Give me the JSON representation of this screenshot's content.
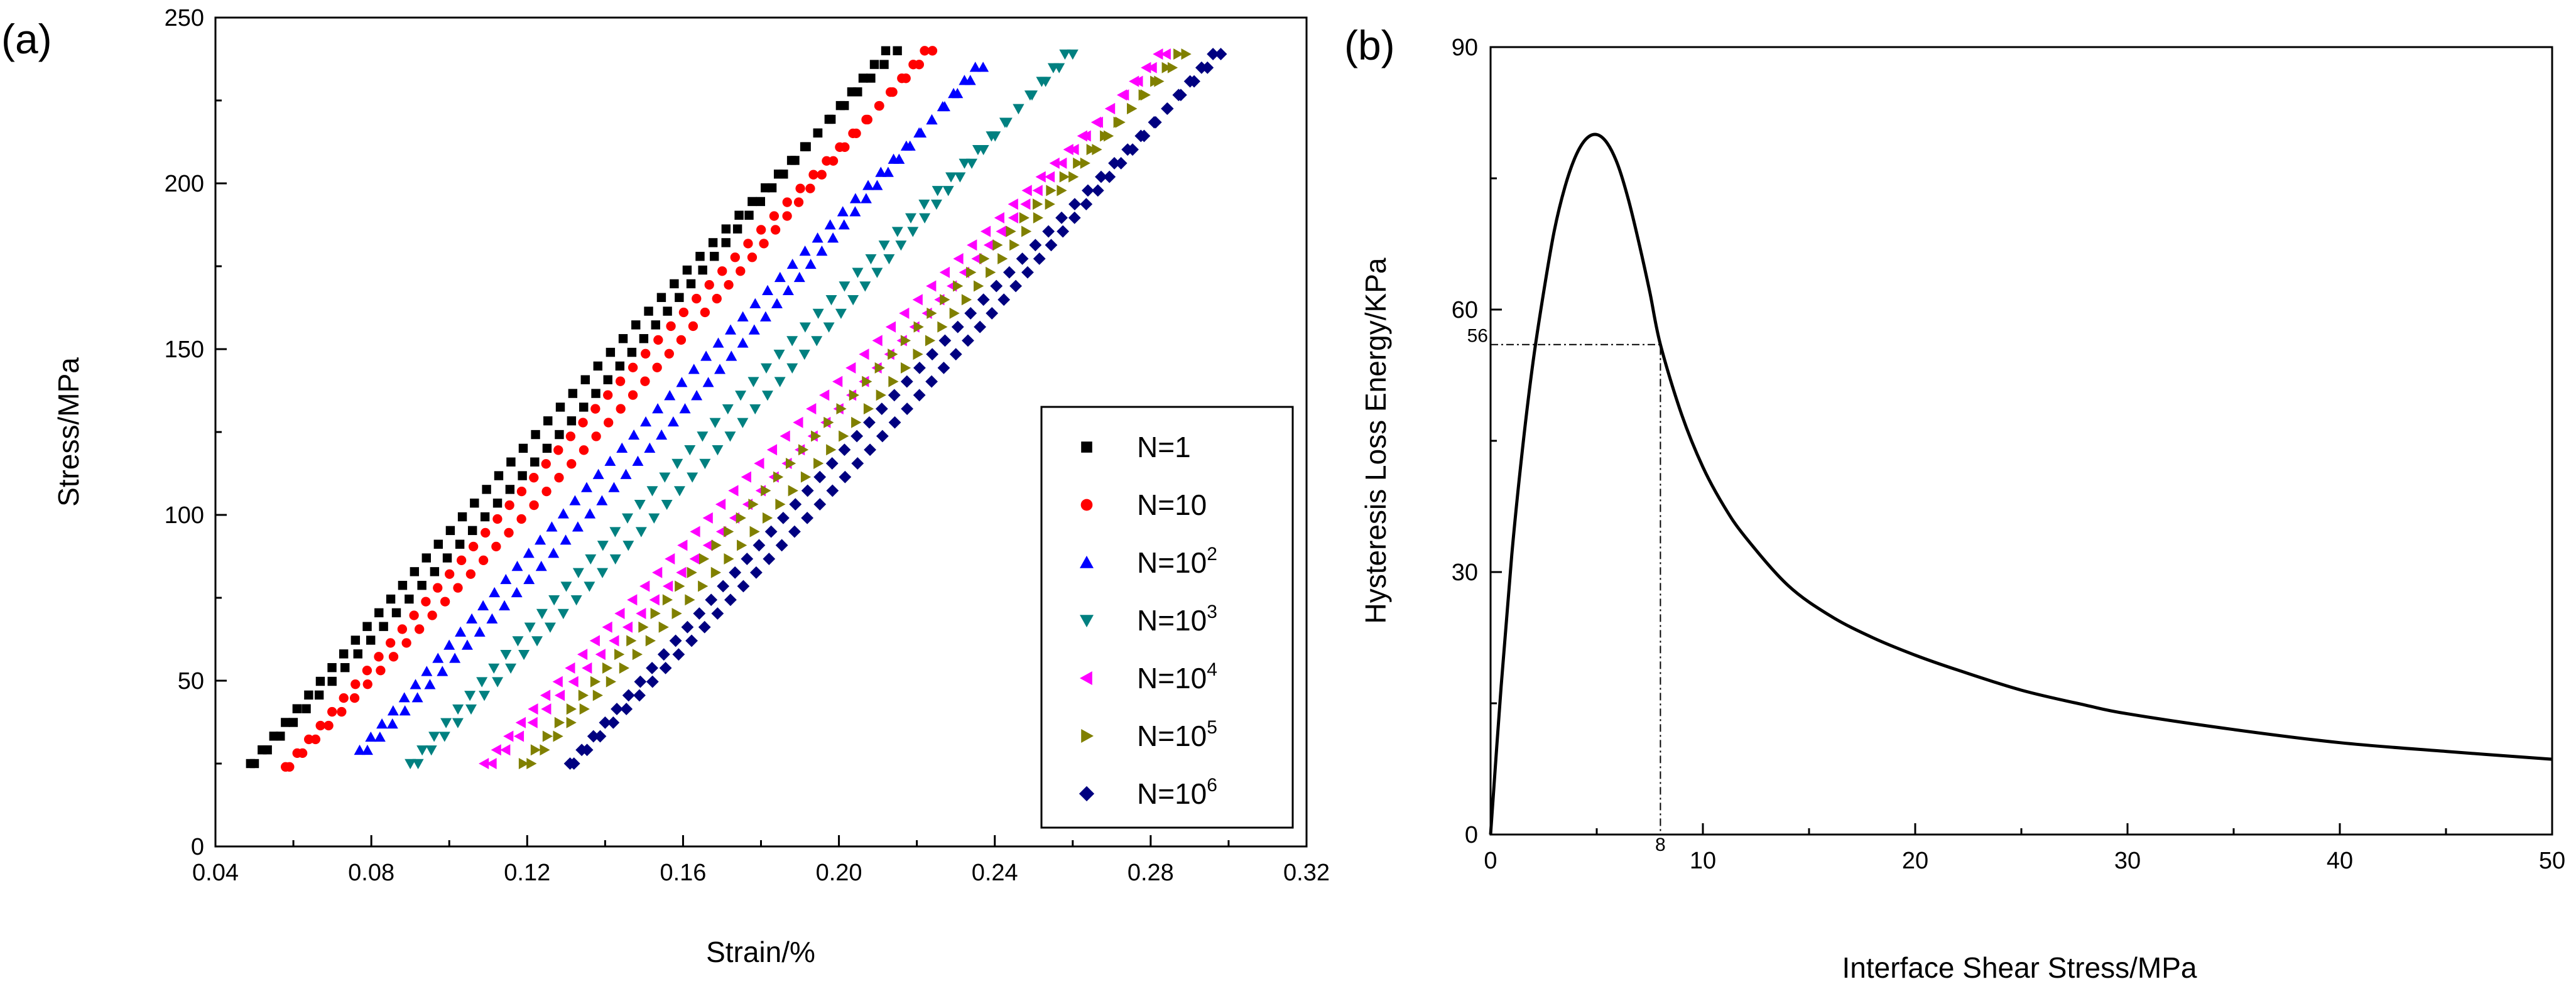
{
  "chart_data": [
    {
      "type": "scatter",
      "panel_label": "(a)",
      "title": "",
      "xlabel": "Strain/%",
      "ylabel": "Stress/MPa",
      "xlim": [
        0.04,
        0.32
      ],
      "ylim": [
        0,
        250
      ],
      "xticks": [
        0.04,
        0.08,
        0.12,
        0.16,
        0.2,
        0.24,
        0.28,
        0.32
      ],
      "xtick_labels": [
        "0.04",
        "0.08",
        "0.12",
        "0.16",
        "0.20",
        "0.24",
        "0.28",
        "0.32"
      ],
      "yticks": [
        0,
        50,
        100,
        150,
        200,
        250
      ],
      "ytick_labels": [
        "0",
        "50",
        "100",
        "150",
        "200",
        "250"
      ],
      "legend_position": "lower-right",
      "series": [
        {
          "name": "N=1",
          "base": "N=1",
          "sup": "",
          "color": "#000000",
          "marker": "square",
          "load": [
            [
              0.049,
              25
            ],
            [
              0.215,
              240
            ]
          ],
          "unload": [
            [
              0.212,
              240
            ],
            [
              0.05,
              25
            ]
          ]
        },
        {
          "name": "N=10",
          "base": "N=10",
          "sup": "",
          "color": "#ff0000",
          "marker": "circle",
          "load": [
            [
              0.058,
              24
            ],
            [
              0.224,
              240
            ]
          ],
          "unload": [
            [
              0.222,
              240
            ],
            [
              0.059,
              24
            ]
          ]
        },
        {
          "name": "N=10^2",
          "base": "N=10",
          "sup": "2",
          "color": "#0000ff",
          "marker": "triangle-up",
          "load": [
            [
              0.077,
              29
            ],
            [
              0.237,
              235
            ]
          ],
          "unload": [
            [
              0.235,
              235
            ],
            [
              0.079,
              29
            ]
          ]
        },
        {
          "name": "N=10^3",
          "base": "N=10",
          "sup": "3",
          "color": "#008080",
          "marker": "triangle-down",
          "load": [
            [
              0.09,
              25
            ],
            [
              0.26,
              239
            ]
          ],
          "unload": [
            [
              0.258,
              239
            ],
            [
              0.092,
              25
            ]
          ]
        },
        {
          "name": "N=10^4",
          "base": "N=10",
          "sup": "4",
          "color": "#ff00ff",
          "marker": "triangle-left",
          "load": [
            [
              0.109,
              25
            ],
            [
              0.284,
              239
            ]
          ],
          "unload": [
            [
              0.282,
              239
            ],
            [
              0.111,
              25
            ]
          ]
        },
        {
          "name": "N=10^5",
          "base": "N=10",
          "sup": "5",
          "color": "#808000",
          "marker": "triangle-right",
          "load": [
            [
              0.119,
              25
            ],
            [
              0.289,
              239
            ]
          ],
          "unload": [
            [
              0.287,
              239
            ],
            [
              0.121,
              25
            ]
          ]
        },
        {
          "name": "N=10^6",
          "base": "N=10",
          "sup": "6",
          "color": "#000080",
          "marker": "diamond",
          "load": [
            [
              0.131,
              25
            ],
            [
              0.298,
              239
            ]
          ],
          "unload": [
            [
              0.296,
              239
            ],
            [
              0.132,
              25
            ]
          ]
        }
      ]
    },
    {
      "type": "line",
      "panel_label": "(b)",
      "title": "",
      "xlabel": "Interface Shear Stress/MPa",
      "ylabel": "Hysteresis Loss Energy/KPa",
      "xlim": [
        0,
        50
      ],
      "ylim": [
        0,
        90
      ],
      "xticks": [
        0,
        10,
        20,
        30,
        40,
        50
      ],
      "xtick_labels": [
        "0",
        "10",
        "20",
        "30",
        "40",
        "50"
      ],
      "yticks": [
        0,
        30,
        60,
        90
      ],
      "ytick_labels": [
        "0",
        "30",
        "60",
        "90"
      ],
      "series": [
        {
          "name": "Hysteresis Loss Energy",
          "x": [
            0,
            0.5,
            1,
            1.5,
            2,
            2.5,
            3,
            3.5,
            4,
            4.5,
            5,
            5.5,
            6,
            6.5,
            7,
            7.5,
            8,
            9,
            10,
            11,
            12,
            14,
            16,
            18,
            20,
            22,
            25,
            28,
            30,
            35,
            40,
            45,
            50
          ],
          "y": [
            0,
            17,
            32,
            44,
            54,
            62,
            69,
            74,
            77.5,
            79.5,
            80,
            79,
            76.5,
            72.5,
            67.5,
            62,
            56,
            48,
            42,
            37.5,
            34,
            28.5,
            25,
            22.5,
            20.5,
            18.8,
            16.5,
            14.8,
            13.8,
            12,
            10.5,
            9.5,
            8.6
          ]
        }
      ],
      "annotations": [
        {
          "label": "56",
          "x": 8,
          "y": 56
        },
        {
          "label": "8",
          "x": 8,
          "y": 56
        }
      ]
    }
  ]
}
